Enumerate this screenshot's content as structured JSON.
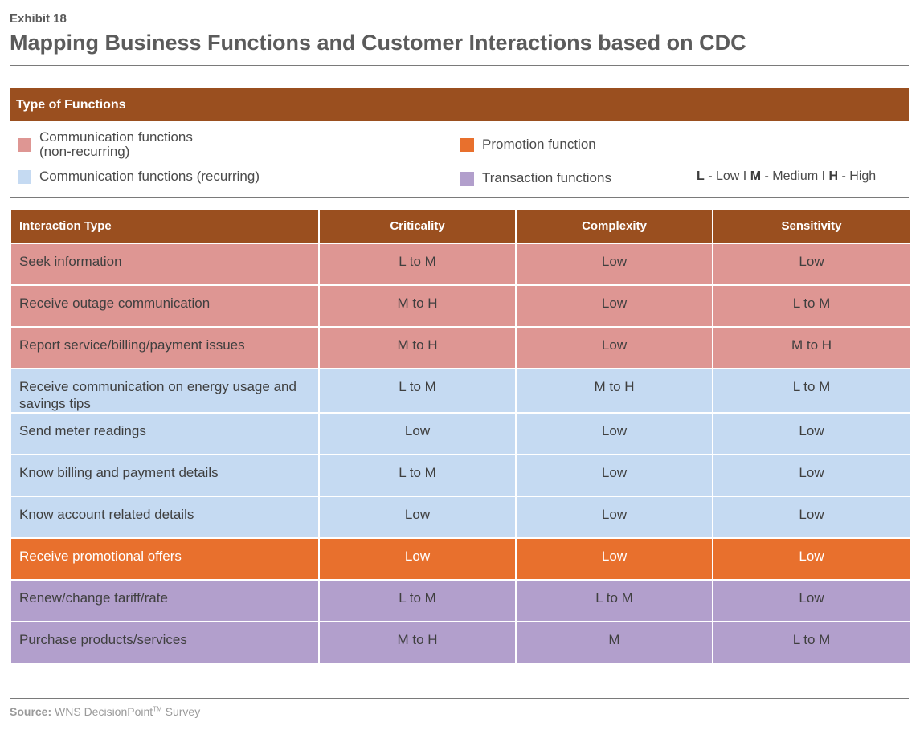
{
  "exhibit": "Exhibit 18",
  "title": "Mapping Business Functions and Customer Interactions based on CDC",
  "legend": {
    "heading": "Type of Functions",
    "items": [
      {
        "label": "Communication functions\n(non-recurring)",
        "color": "#de9693"
      },
      {
        "label": "Promotion function",
        "color": "#e8702d"
      },
      {
        "label": "Communication functions (recurring)",
        "color": "#c5daf2"
      },
      {
        "label": "Transaction functions",
        "color": "#b29fcc"
      }
    ],
    "key": {
      "l": "L",
      "l_text": " - Low I ",
      "m": "M",
      "m_text": " - Medium I ",
      "h": "H",
      "h_text": " - High"
    }
  },
  "table": {
    "headers": [
      "Interaction Type",
      "Criticality",
      "Complexity",
      "Sensitivity"
    ],
    "rows": [
      {
        "type": "pink",
        "cells": [
          "Seek information",
          "L to M",
          "Low",
          "Low"
        ]
      },
      {
        "type": "pink",
        "cells": [
          "Receive outage communication",
          "M to H",
          "Low",
          "L to M"
        ]
      },
      {
        "type": "pink",
        "cells": [
          "Report service/billing/payment issues",
          "M to H",
          "Low",
          "M to H"
        ]
      },
      {
        "type": "blue",
        "cells": [
          "Receive communication on energy usage and savings tips",
          "L to M",
          "M to H",
          "L to M"
        ]
      },
      {
        "type": "blue",
        "cells": [
          "Send meter readings",
          "Low",
          "Low",
          "Low"
        ]
      },
      {
        "type": "blue",
        "cells": [
          "Know billing and payment details",
          "L to M",
          "Low",
          "Low"
        ]
      },
      {
        "type": "blue",
        "cells": [
          "Know account related details",
          "Low",
          "Low",
          "Low"
        ]
      },
      {
        "type": "orange",
        "cells": [
          "Receive promotional offers",
          "Low",
          "Low",
          "Low"
        ]
      },
      {
        "type": "purple",
        "cells": [
          "Renew/change tariff/rate",
          "L to M",
          "L to M",
          "Low"
        ]
      },
      {
        "type": "purple",
        "cells": [
          "Purchase products/services",
          "M to H",
          "M",
          "L to M"
        ]
      }
    ]
  },
  "source": {
    "label": "Source:",
    "text": " WNS DecisionPoint",
    "tm": "TM",
    "suffix": " Survey"
  }
}
